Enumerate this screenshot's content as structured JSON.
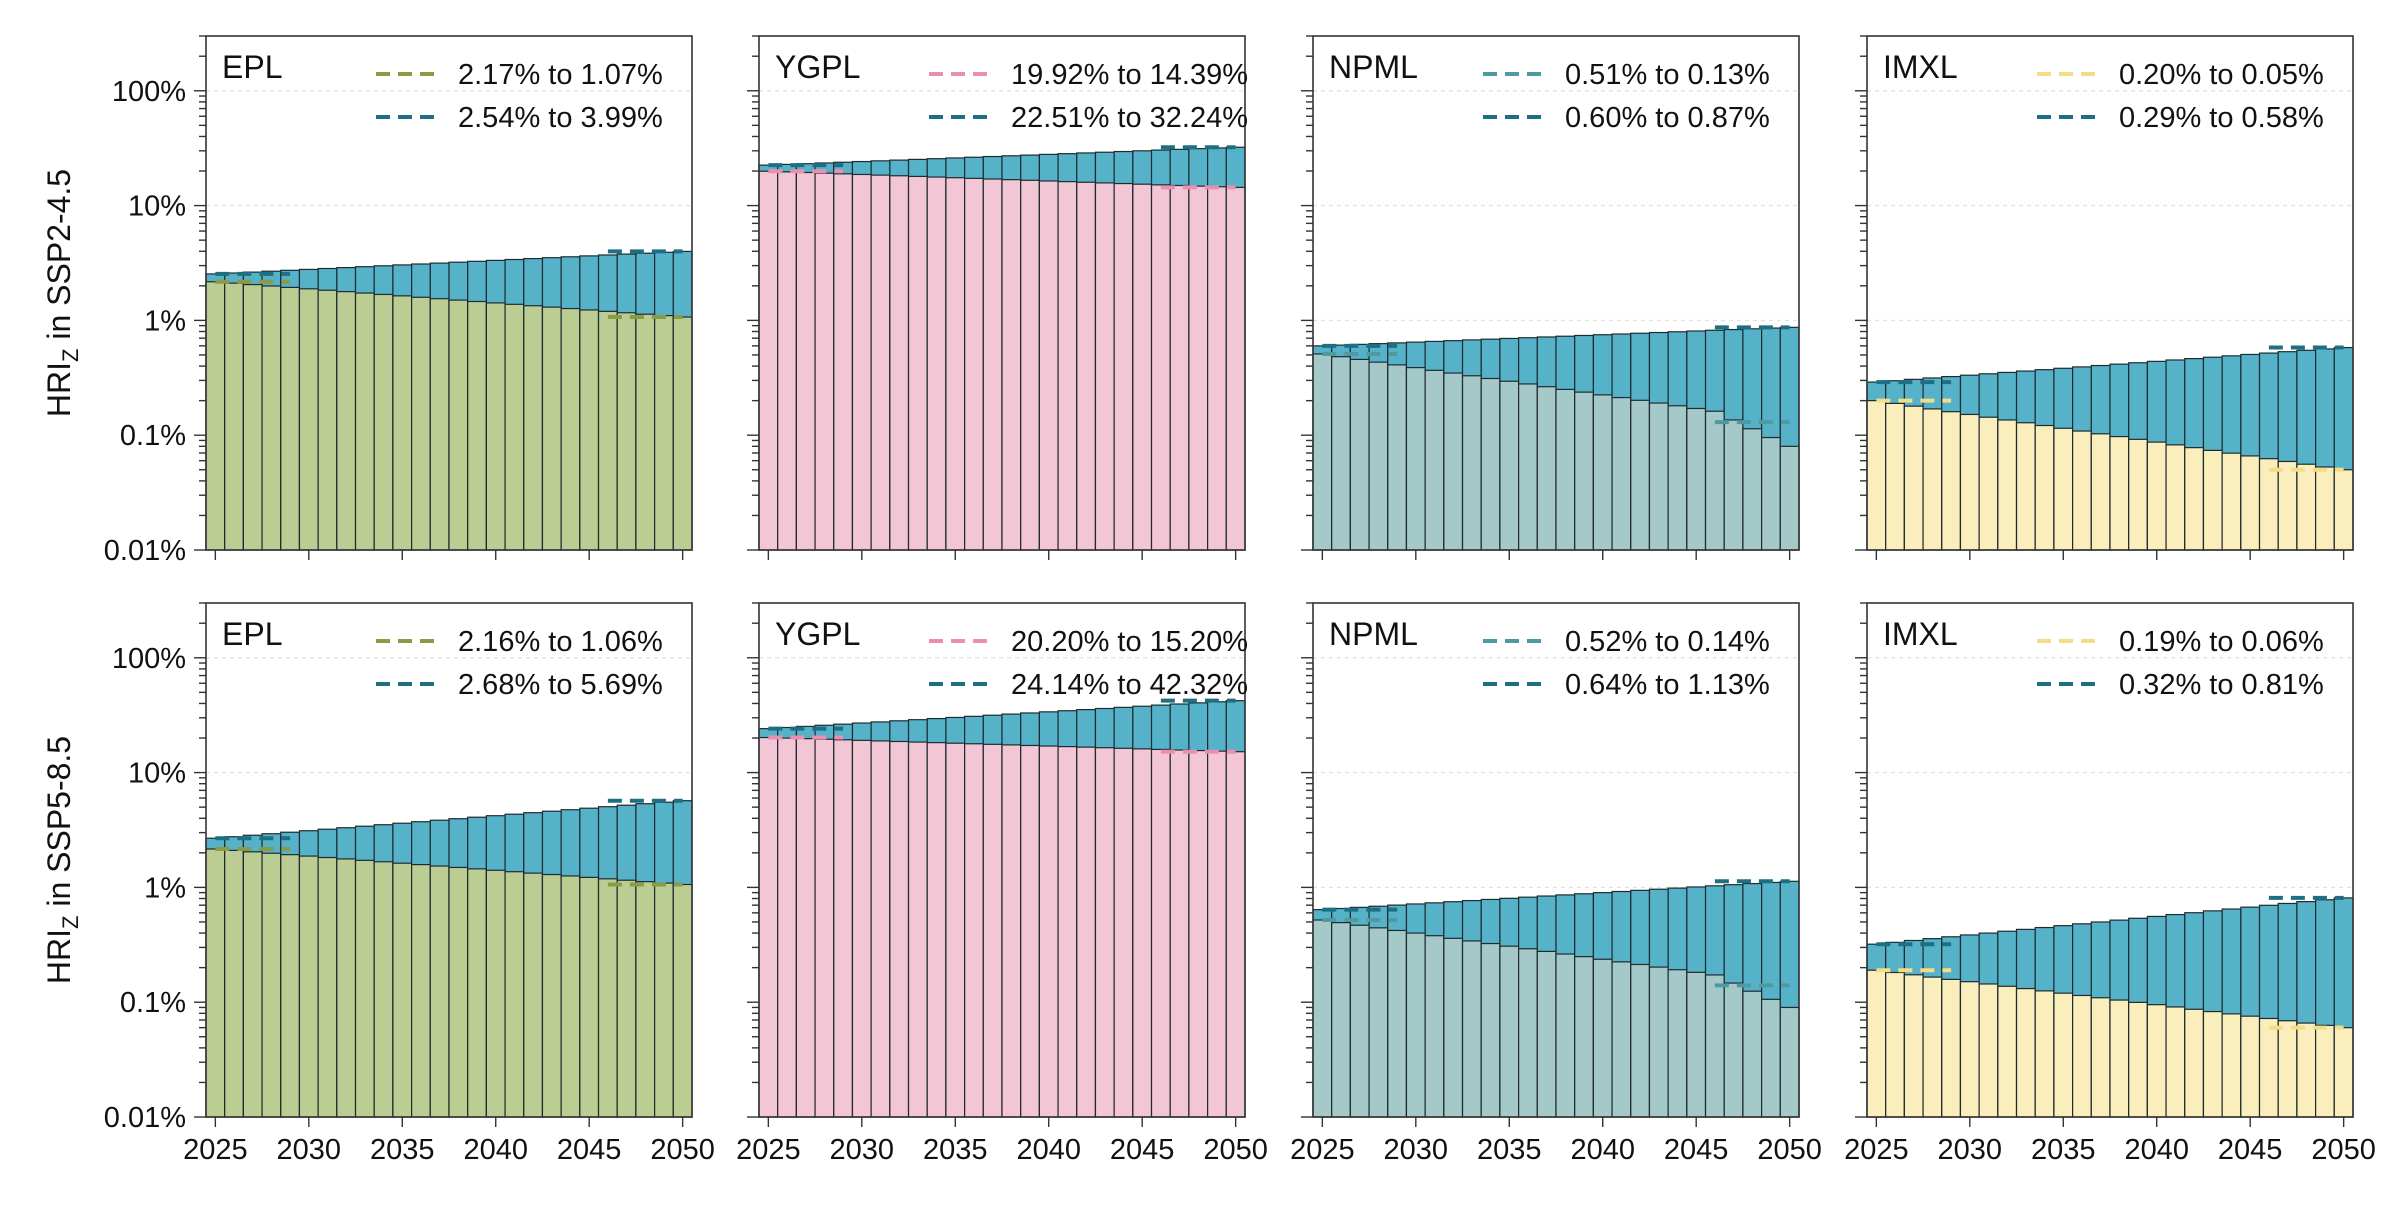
{
  "colors": {
    "upper_fill": "#55b2c9",
    "upper_line": "#1f6f82",
    "EPL": {
      "fill": "#bccd94",
      "line": "#8b9a44"
    },
    "YGPL": {
      "fill": "#f3c6d6",
      "line": "#e98fb1"
    },
    "NPML": {
      "fill": "#a5c8c8",
      "line": "#4f9aa1"
    },
    "IMXL": {
      "fill": "#fbeebd",
      "line": "#f3dd86"
    }
  },
  "chart_data": [
    {
      "type": "bar",
      "stacked_overlay": true,
      "y_scale": "log",
      "row_label": "HRI",
      "row_label_sub": "Z",
      "row_label_suffix": " in SSP2-4.5",
      "panels": [
        {
          "name": "EPL",
          "legend": [
            "2.17% to 1.07%",
            "2.54% to 3.99%"
          ],
          "lower": [
            2.17,
            1.07
          ],
          "upper": [
            2.54,
            3.99
          ],
          "lower_start_pts": [
            2.25,
            2.3,
            2.2
          ],
          "upper_start_pts": [
            2.45,
            2.55,
            2.5
          ]
        },
        {
          "name": "YGPL",
          "legend": [
            "19.92% to 14.39%",
            "22.51% to 32.24%"
          ],
          "lower": [
            19.92,
            14.39
          ],
          "upper": [
            22.51,
            32.24
          ]
        },
        {
          "name": "NPML",
          "legend": [
            "0.51% to 0.13%",
            "0.60% to 0.87%"
          ],
          "lower": [
            0.51,
            0.13
          ],
          "upper": [
            0.6,
            0.87
          ],
          "lower_end_mid": 0.08
        },
        {
          "name": "IMXL",
          "legend": [
            "0.20% to 0.05%",
            "0.29% to 0.58%"
          ],
          "lower": [
            0.2,
            0.05
          ],
          "upper": [
            0.29,
            0.58
          ]
        }
      ]
    },
    {
      "type": "bar",
      "stacked_overlay": true,
      "y_scale": "log",
      "row_label": "HRI",
      "row_label_sub": "Z",
      "row_label_suffix": " in SSP5-8.5",
      "panels": [
        {
          "name": "EPL",
          "legend": [
            "2.16% to 1.06%",
            "2.68% to 5.69%"
          ],
          "lower": [
            2.16,
            1.06
          ],
          "upper": [
            2.68,
            5.69
          ]
        },
        {
          "name": "YGPL",
          "legend": [
            "20.20% to 15.20%",
            "24.14% to 42.32%"
          ],
          "lower": [
            20.2,
            15.2
          ],
          "upper": [
            24.14,
            42.32
          ]
        },
        {
          "name": "NPML",
          "legend": [
            "0.52% to 0.14%",
            "0.64% to 1.13%"
          ],
          "lower": [
            0.52,
            0.14
          ],
          "upper": [
            0.64,
            1.13
          ],
          "lower_end_mid": 0.09
        },
        {
          "name": "IMXL",
          "legend": [
            "0.19% to 0.06%",
            "0.32% to 0.81%"
          ],
          "lower": [
            0.19,
            0.06
          ],
          "upper": [
            0.32,
            0.81
          ]
        }
      ]
    }
  ],
  "axes": {
    "x_range": [
      2024.5,
      2050.5
    ],
    "x_ticks": [
      2025,
      2030,
      2035,
      2040,
      2045,
      2050
    ],
    "x_tick_labels": [
      "2025",
      "2030",
      "2035",
      "2040",
      "2045",
      "2050"
    ],
    "years": [
      2025,
      2026,
      2027,
      2028,
      2029,
      2030,
      2031,
      2032,
      2033,
      2034,
      2035,
      2036,
      2037,
      2038,
      2039,
      2040,
      2041,
      2042,
      2043,
      2044,
      2045,
      2046,
      2047,
      2048,
      2049,
      2050
    ],
    "y_range_percent": [
      0.01,
      300
    ],
    "y_ticks_percent": [
      0.01,
      0.1,
      1,
      10,
      100
    ],
    "y_tick_labels": [
      "0.01%",
      "0.1%",
      "1%",
      "10%",
      "100%"
    ],
    "grid": true
  }
}
